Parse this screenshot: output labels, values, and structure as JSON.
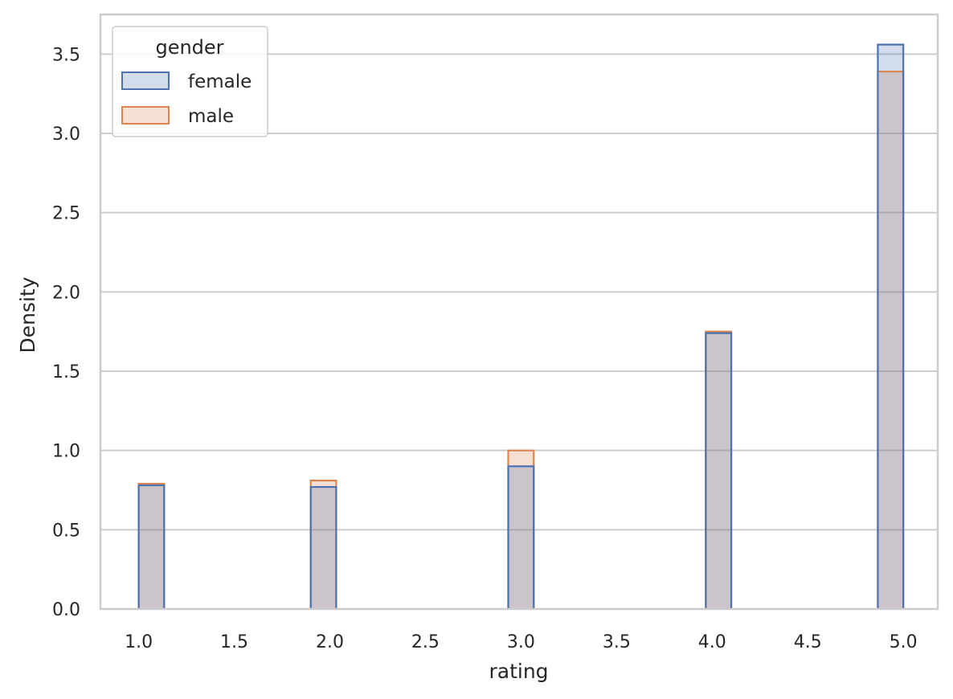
{
  "chart_data": {
    "type": "bar",
    "subtype": "histogram-step-overlay",
    "xlabel": "rating",
    "ylabel": "Density",
    "xlim": [
      0.8,
      5.18
    ],
    "ylim": [
      0,
      3.75
    ],
    "x_ticks": [
      1.0,
      1.5,
      2.0,
      2.5,
      3.0,
      3.5,
      4.0,
      4.5,
      5.0
    ],
    "x_tick_labels": [
      "1.0",
      "1.5",
      "2.0",
      "2.5",
      "3.0",
      "3.5",
      "4.0",
      "4.5",
      "5.0"
    ],
    "y_ticks": [
      0.0,
      0.5,
      1.0,
      1.5,
      2.0,
      2.5,
      3.0,
      3.5
    ],
    "y_tick_labels": [
      "0.0",
      "0.5",
      "1.0",
      "1.5",
      "2.0",
      "2.5",
      "3.0",
      "3.5"
    ],
    "bin_edges": [
      [
        1.0,
        1.1333
      ],
      [
        1.9,
        2.0333
      ],
      [
        2.9333,
        3.0667
      ],
      [
        3.9667,
        4.1
      ],
      [
        4.8667,
        5.0
      ]
    ],
    "categories": [
      "1.0",
      "2.0",
      "3.0",
      "4.0",
      "5.0"
    ],
    "series": [
      {
        "name": "female",
        "values": [
          0.78,
          0.77,
          0.9,
          1.74,
          3.56
        ],
        "fill": "#4c72b0",
        "fill_opacity": 0.25,
        "edge": "#4c72b0"
      },
      {
        "name": "male",
        "values": [
          0.79,
          0.81,
          1.0,
          1.75,
          3.39
        ],
        "fill": "#dd8452",
        "fill_opacity": 0.25,
        "edge": "#dd8452"
      }
    ],
    "legend": {
      "title": "gender",
      "placement": "top-left"
    },
    "grid": {
      "y": true,
      "x": false,
      "color": "#cccccc"
    },
    "spine_color": "#cccccc"
  }
}
